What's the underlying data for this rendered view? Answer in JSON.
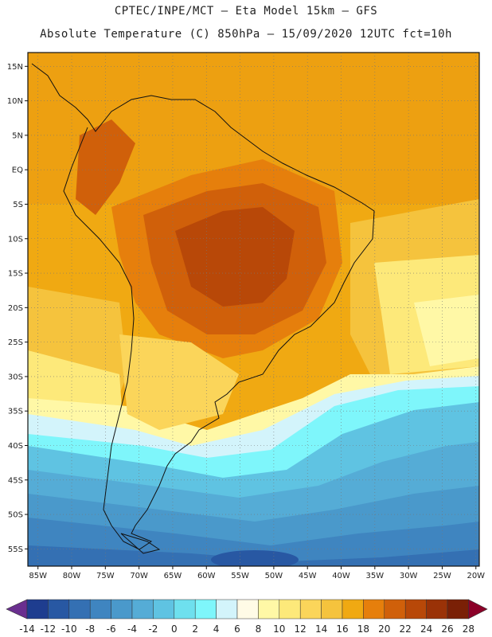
{
  "header": {
    "line1": "CPTEC/INPE/MCT –  Eta Model 15km – GFS",
    "line2": "Absolute Temperature (C) 850hPa – 15/09/2020 12UTC fct=10h"
  },
  "map": {
    "lat_labels": [
      "15N",
      "10N",
      "5N",
      "EQ",
      "5S",
      "10S",
      "15S",
      "20S",
      "25S",
      "30S",
      "35S",
      "40S",
      "45S",
      "50S",
      "55S"
    ],
    "lon_labels": [
      "85W",
      "80W",
      "75W",
      "70W",
      "65W",
      "60W",
      "55W",
      "50W",
      "45W",
      "40W",
      "35W",
      "30W",
      "25W",
      "20W"
    ],
    "grid": "dotted"
  },
  "colorbar": {
    "labels": [
      "-14",
      "-12",
      "-10",
      "-8",
      "-6",
      "-4",
      "-2",
      "0",
      "2",
      "4",
      "6",
      "8",
      "10",
      "12",
      "14",
      "16",
      "18",
      "20",
      "22",
      "24",
      "26",
      "28"
    ],
    "colors": [
      "#6a2f8f",
      "#1e3d8f",
      "#2858a3",
      "#3470b3",
      "#3f85c0",
      "#4a99cb",
      "#55acd6",
      "#5fc3e2",
      "#6ee0ee",
      "#7ef6fb",
      "#d3f4fb",
      "#fffbe6",
      "#fff8a6",
      "#fde97a",
      "#fbd55a",
      "#f5c33d",
      "#f0a912",
      "#e67f0c",
      "#d0600a",
      "#b84808",
      "#9a3207",
      "#7a2006",
      "#8b0028"
    ]
  }
}
